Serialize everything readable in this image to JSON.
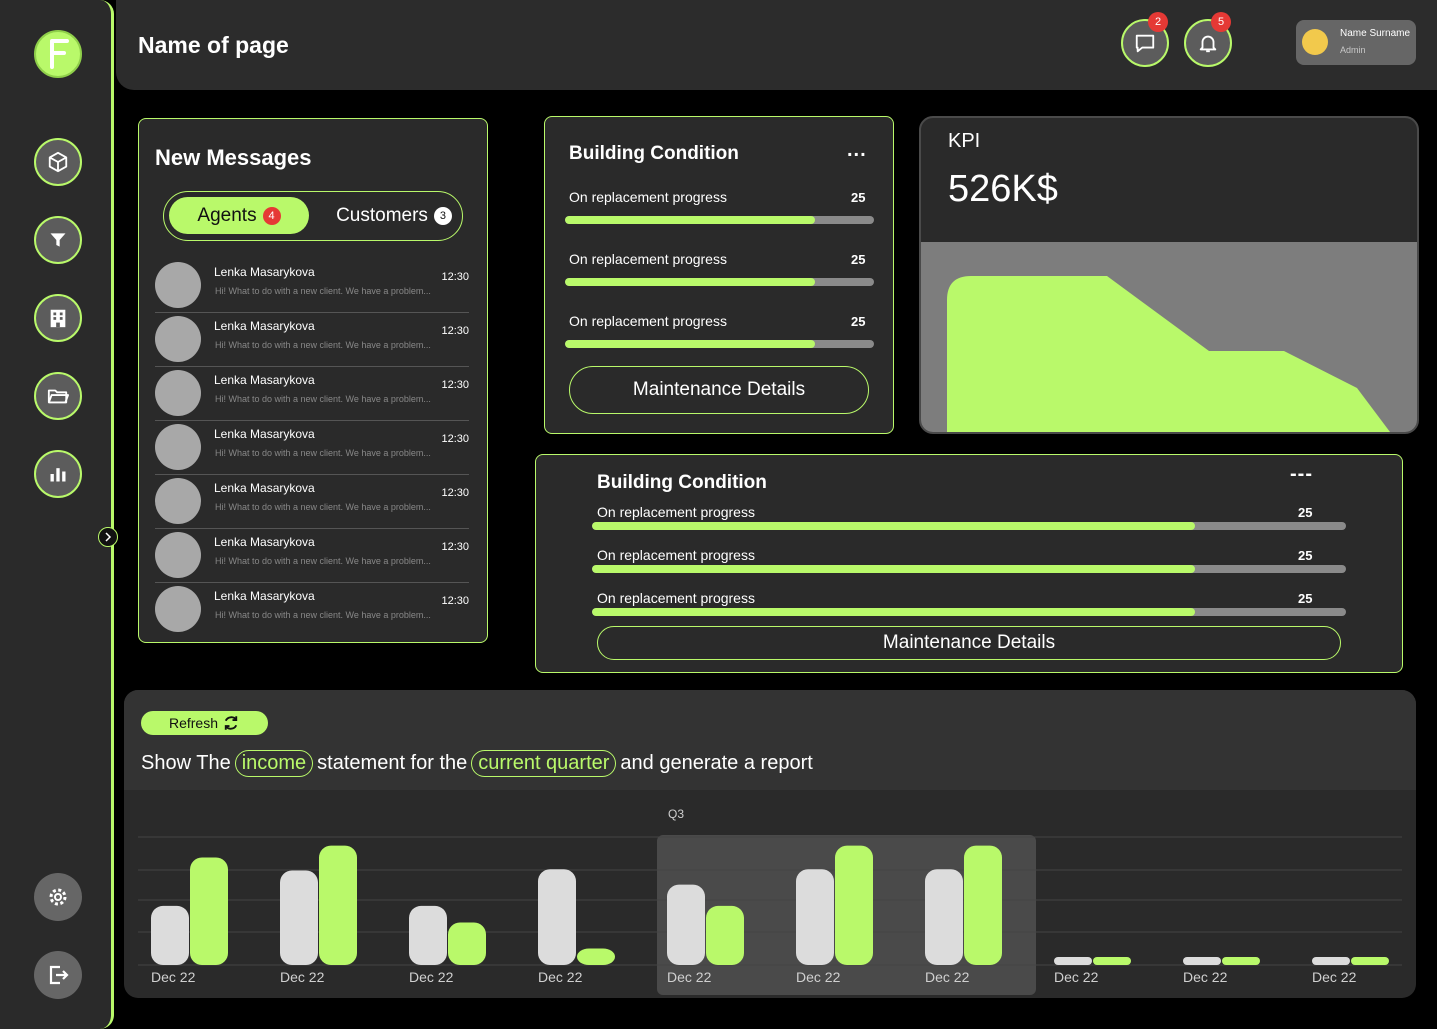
{
  "header": {
    "title": "Name of page",
    "messages_badge": "2",
    "notifications_badge": "5",
    "user": {
      "name": "Name Surname",
      "role": "Admin"
    }
  },
  "colors": {
    "accent": "#b9f96a",
    "bar_primary": "#dcdcdc",
    "bar_secondary": "#b9f96a"
  },
  "sidebar": {
    "items": [
      "cube-icon",
      "filter-icon",
      "building-icon",
      "folder-icon",
      "bar-chart-icon"
    ],
    "bottom": [
      "settings-icon",
      "logout-icon"
    ]
  },
  "messages": {
    "title": "New Messages",
    "tabs": [
      {
        "label": "Agents",
        "count": "4"
      },
      {
        "label": "Customers",
        "count": "3"
      }
    ],
    "items": [
      {
        "name": "Lenka Masarykova",
        "text": "Hi! What to do with a new client. We have a problem...",
        "time": "12:30"
      },
      {
        "name": "Lenka Masarykova",
        "text": "Hi! What to do with a new client. We have a problem...",
        "time": "12:30"
      },
      {
        "name": "Lenka Masarykova",
        "text": "Hi! What to do with a new client. We have a problem...",
        "time": "12:30"
      },
      {
        "name": "Lenka Masarykova",
        "text": "Hi! What to do with a new client. We have a problem...",
        "time": "12:30"
      },
      {
        "name": "Lenka Masarykova",
        "text": "Hi! What to do with a new client. We have a problem...",
        "time": "12:30"
      },
      {
        "name": "Lenka Masarykova",
        "text": "Hi! What to do with a new client. We have a problem...",
        "time": "12:30"
      },
      {
        "name": "Lenka Masarykova",
        "text": "Hi! What to do with a new client. We have a problem...",
        "time": "12:30"
      }
    ]
  },
  "building_small": {
    "title": "Building Condition",
    "menu": "...",
    "rows": [
      {
        "label": "On replacement progress",
        "value": "25",
        "progress": 0.81
      },
      {
        "label": "On replacement progress",
        "value": "25",
        "progress": 0.81
      },
      {
        "label": "On replacement progress",
        "value": "25",
        "progress": 0.81
      }
    ],
    "button": "Maintenance Details"
  },
  "kpi": {
    "label": "KPI",
    "value": "526K$"
  },
  "building_wide": {
    "title": "Building Condition",
    "menu": "---",
    "rows": [
      {
        "label": "On replacement progress",
        "value": "25",
        "progress": 0.8
      },
      {
        "label": "On replacement progress",
        "value": "25",
        "progress": 0.8
      },
      {
        "label": "On replacement progress",
        "value": "25",
        "progress": 0.8
      }
    ],
    "button": "Maintenance Details"
  },
  "report": {
    "refresh_label": "Refresh",
    "prompt": {
      "part1": "Show The",
      "chip1": "income",
      "part2": "statement for the",
      "chip2": "current quarter",
      "part3": "and generate a report"
    }
  },
  "chart_data": {
    "type": "bar",
    "highlight_label": "Q3",
    "highlight_range": [
      4,
      6
    ],
    "categories": [
      "Dec 22",
      "Dec 22",
      "Dec 22",
      "Dec 22",
      "Dec 22",
      "Dec 22",
      "Dec 22",
      "Dec 22",
      "Dec 22",
      "Dec 22"
    ],
    "series": [
      {
        "values": [
          50,
          80,
          50,
          81,
          68,
          81,
          81,
          5,
          5,
          5
        ]
      },
      {
        "values": [
          91,
          101,
          36,
          14,
          50,
          101,
          101,
          5,
          5,
          5
        ]
      }
    ],
    "ylim": [
      0,
      110
    ]
  }
}
